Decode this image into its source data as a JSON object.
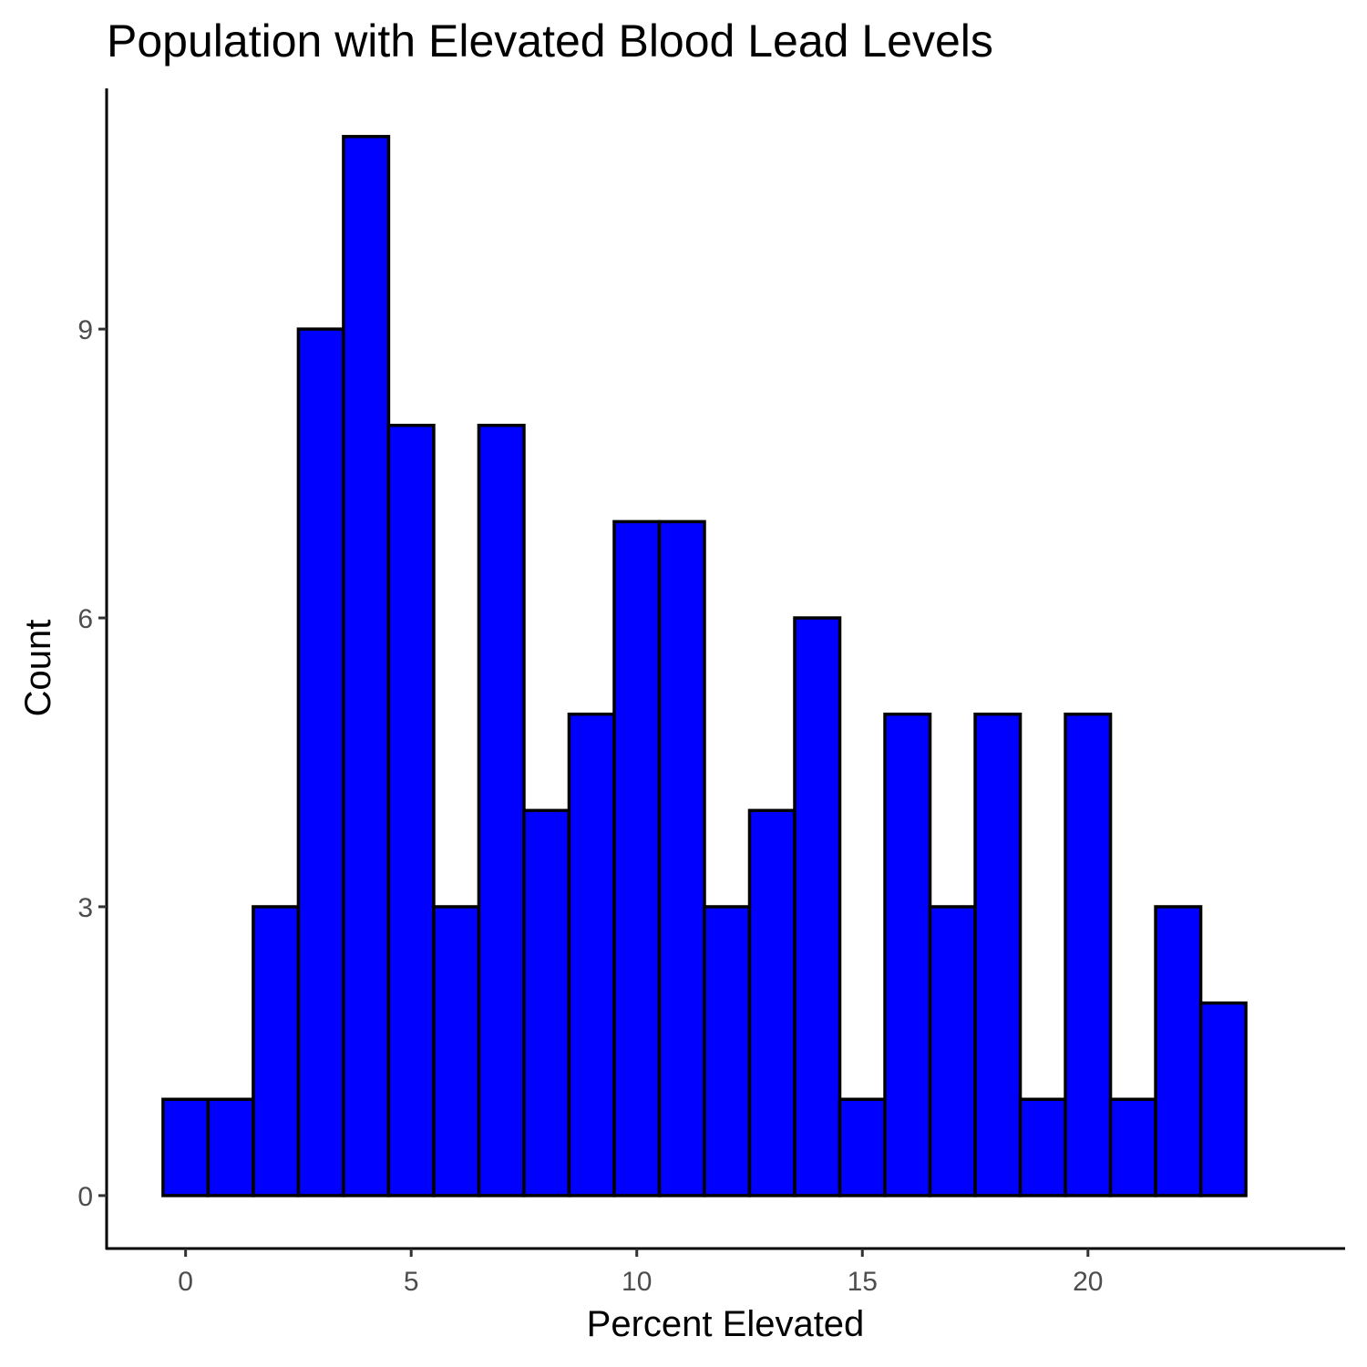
{
  "chart_data": {
    "type": "bar",
    "title": "Population with Elevated Blood Lead Levels",
    "xlabel": "Percent Elevated",
    "ylabel": "Count",
    "bin_width": 1,
    "x": [
      0,
      1,
      2,
      3,
      4,
      5,
      6,
      7,
      8,
      9,
      10,
      11,
      12,
      13,
      14,
      15,
      16,
      17,
      18,
      19,
      20,
      21,
      22,
      23
    ],
    "values": [
      1,
      1,
      3,
      9,
      11,
      8,
      3,
      8,
      4,
      5,
      7,
      7,
      3,
      4,
      6,
      1,
      5,
      3,
      5,
      1,
      5,
      1,
      3,
      2
    ],
    "xlim": [
      -1.75,
      25.7
    ],
    "ylim": [
      -0.55,
      11.5
    ],
    "x_ticks": [
      0,
      5,
      10,
      15,
      20
    ],
    "y_ticks": [
      0,
      3,
      6,
      9
    ],
    "x_tick_labels": [
      "0",
      "5",
      "10",
      "15",
      "20"
    ],
    "y_tick_labels": [
      "0",
      "3",
      "6",
      "9"
    ],
    "bar_fill": "#0000ff",
    "bar_outline": "#000000",
    "grid": false,
    "legend": "none"
  }
}
